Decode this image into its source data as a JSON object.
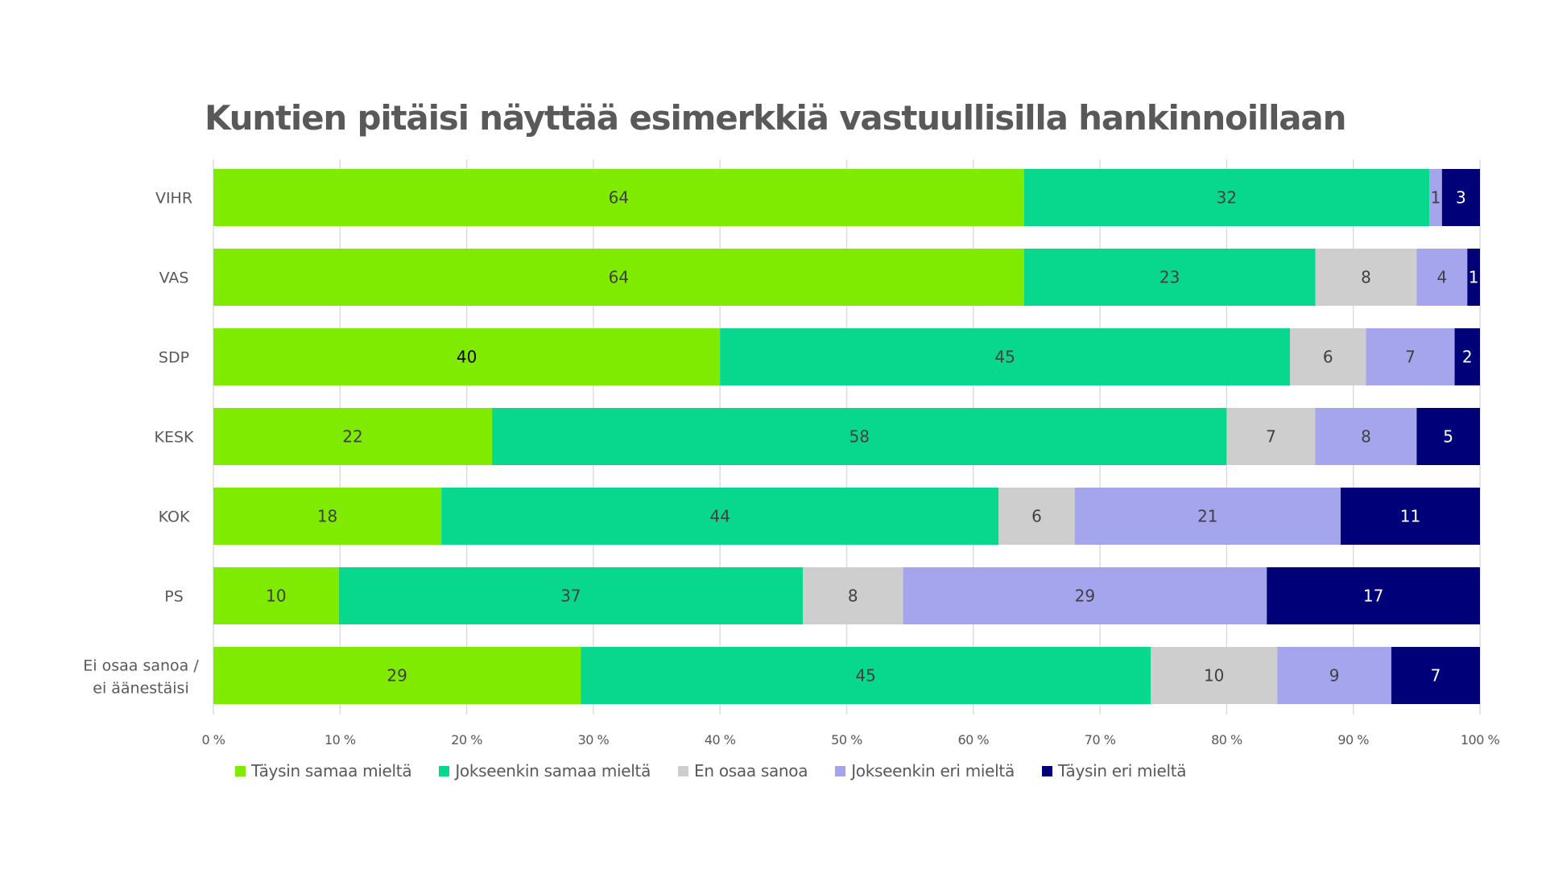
{
  "chart_data": {
    "type": "bar",
    "orientation": "horizontal",
    "stacked": "percent",
    "title": "Kuntien pitäisi näyttää esimerkkiä vastuullisilla hankinnoillaan",
    "xlabel": "",
    "ylabel": "",
    "xlim": [
      0,
      100
    ],
    "x_ticks": [
      "0 %",
      "10 %",
      "20 %",
      "30 %",
      "40 %",
      "50 %",
      "60 %",
      "70 %",
      "80 %",
      "90 %",
      "100 %"
    ],
    "grid": "vertical",
    "legend_position": "bottom",
    "categories": [
      "VIHR",
      "VAS",
      "SDP",
      "KESK",
      "KOK",
      "PS",
      "Ei osaa sanoa / ei äänestäisi"
    ],
    "series": [
      {
        "name": "Täysin samaa mieltä",
        "color": "#7FEB00",
        "label_color": "#404040",
        "values": [
          64,
          64,
          40,
          22,
          18,
          10,
          29
        ]
      },
      {
        "name": "Jokseenkin samaa mieltä",
        "color": "#08D88E",
        "label_color": "#404040",
        "values": [
          32,
          23,
          45,
          58,
          44,
          37,
          45
        ]
      },
      {
        "name": "En osaa sanoa",
        "color": "#CFCECE",
        "label_color": "#404040",
        "values": [
          0,
          8,
          6,
          7,
          6,
          8,
          10
        ]
      },
      {
        "name": "Jokseenkin eri mieltä",
        "color": "#A5A5EE",
        "label_color": "#404040",
        "values": [
          1,
          4,
          7,
          8,
          21,
          29,
          9
        ]
      },
      {
        "name": "Täysin eri mieltä",
        "color": "#000078",
        "label_color": "#FFFFFF",
        "values": [
          3,
          1,
          2,
          5,
          11,
          17,
          7
        ]
      }
    ]
  }
}
